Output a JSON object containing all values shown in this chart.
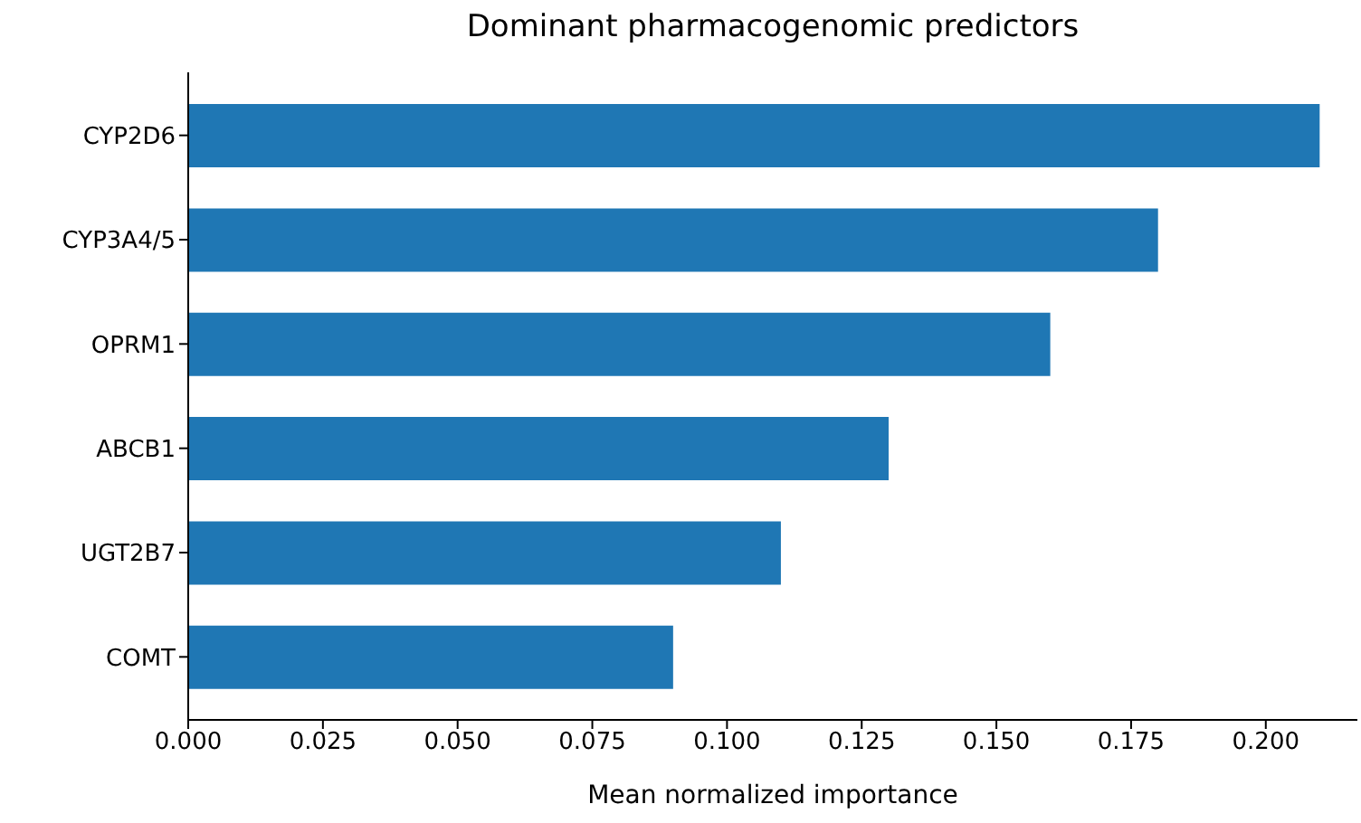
{
  "chart_data": {
    "type": "bar",
    "orientation": "horizontal",
    "title": "Dominant pharmacogenomic predictors",
    "xlabel": "Mean normalized importance",
    "categories": [
      "CYP2D6",
      "CYP3A4/5",
      "OPRM1",
      "ABCB1",
      "UGT2B7",
      "COMT"
    ],
    "values": [
      0.21,
      0.18,
      0.16,
      0.13,
      0.11,
      0.09
    ],
    "color": "#1f77b4",
    "xlim": [
      0,
      0.217
    ],
    "xticks": [
      {
        "value": 0,
        "label": "0.000"
      },
      {
        "value": 0.025,
        "label": "0.025"
      },
      {
        "value": 0.05,
        "label": "0.050"
      },
      {
        "value": 0.075,
        "label": "0.075"
      },
      {
        "value": 0.1,
        "label": "0.100"
      },
      {
        "value": 0.125,
        "label": "0.125"
      },
      {
        "value": 0.15,
        "label": "0.150"
      },
      {
        "value": 0.175,
        "label": "0.175"
      },
      {
        "value": 0.2,
        "label": "0.200"
      }
    ],
    "grid": false,
    "legend": false
  }
}
